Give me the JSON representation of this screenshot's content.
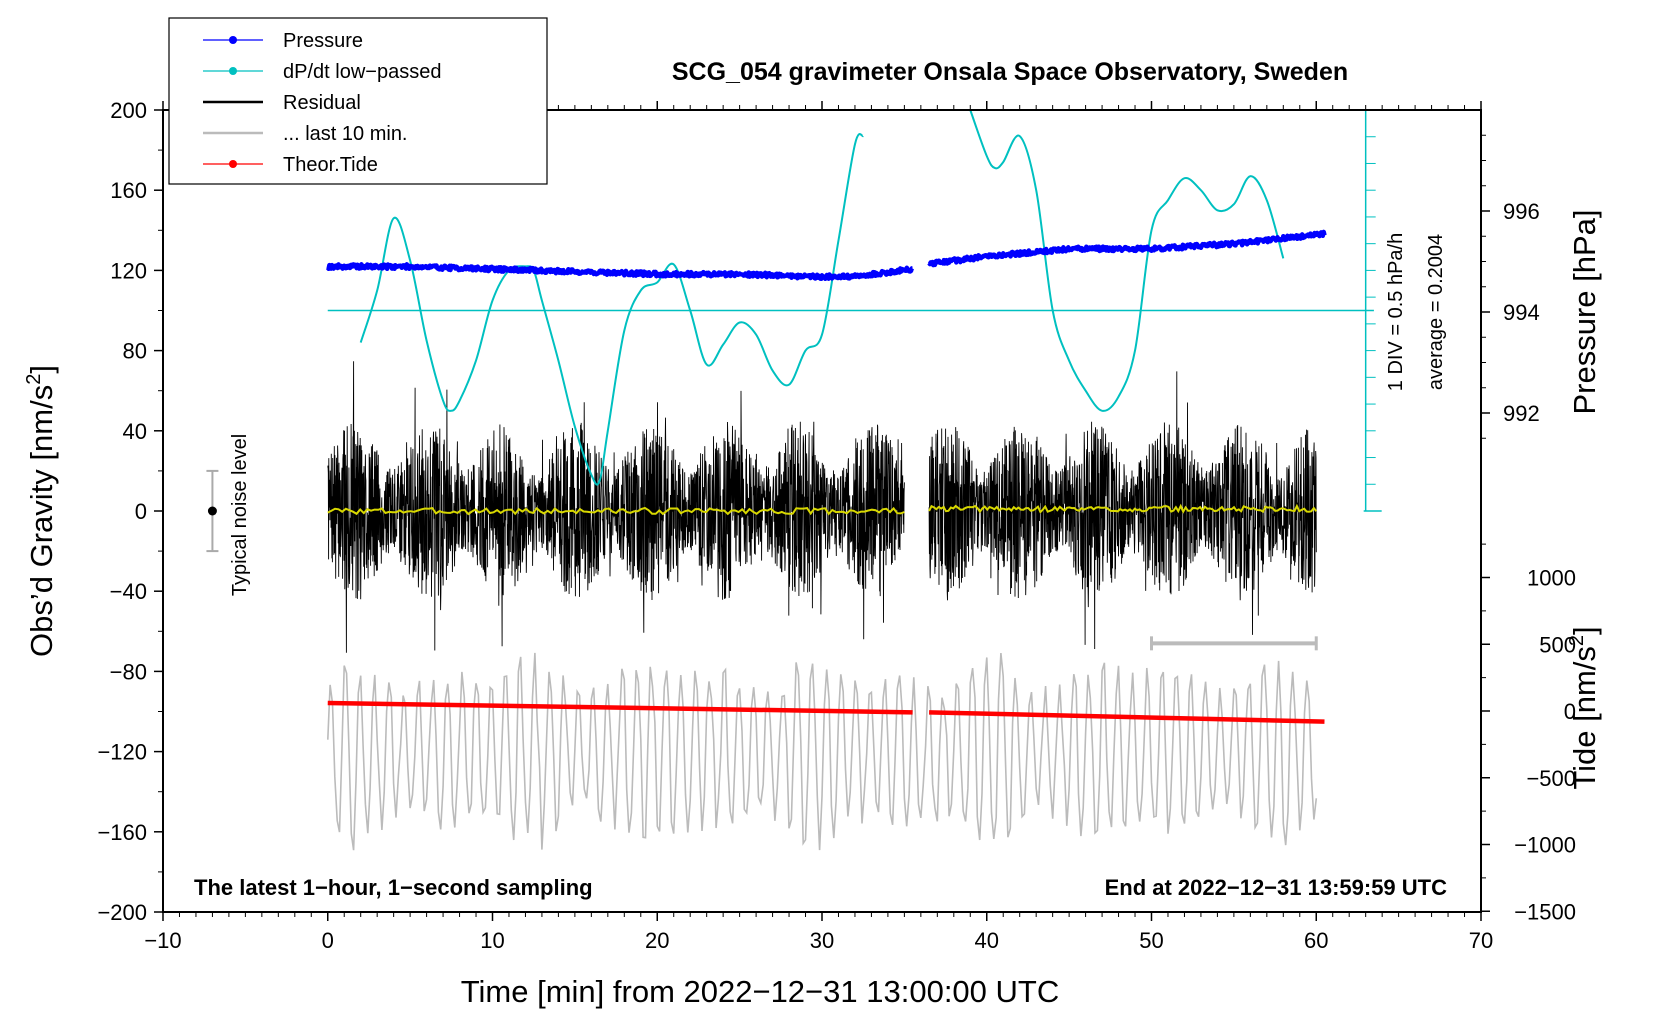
{
  "chart_data": {
    "type": "line",
    "title": "SCG_054 gravimeter Onsala Space Observatory, Sweden",
    "xlabel": "Time [min] from 2022−12−31 13:00:00 UTC",
    "ylabel_left": "Obs’d Gravity [nm/s²]",
    "ylabel_pressure": "Pressure [hPa]",
    "ylabel_tide": "Tide [nm/s²]",
    "xlim": [
      -10,
      70
    ],
    "ylim_left": [
      -200,
      200
    ],
    "x_ticks": [
      -10,
      0,
      10,
      20,
      30,
      40,
      50,
      60,
      70
    ],
    "x_tick_labels": [
      "−10",
      "0",
      "10",
      "20",
      "30",
      "40",
      "50",
      "60",
      "70"
    ],
    "y_ticks_left": [
      200,
      160,
      120,
      80,
      40,
      0,
      -40,
      -80,
      -120,
      -160,
      -200
    ],
    "y_tick_labels_left": [
      "200",
      "160",
      "120",
      "80",
      "40",
      "0",
      "−40",
      "−80",
      "−120",
      "−160",
      "−200"
    ],
    "pressure_ticks": [
      996,
      994,
      992
    ],
    "pressure_tick_labels": [
      "996",
      "994",
      "992"
    ],
    "tide_ticks": [
      1000,
      500,
      0,
      -500,
      -1000,
      -1500
    ],
    "tide_tick_labels": [
      "1000",
      "500",
      "0",
      "−500",
      "−1000",
      "−1500"
    ],
    "legend": {
      "position": "top-left",
      "entries": [
        {
          "label": "Pressure",
          "color": "#0000ff",
          "marker": true
        },
        {
          "label": "dP/dt low−passed",
          "color": "#00c0c0",
          "marker": true
        },
        {
          "label": "Residual",
          "color": "#000000",
          "marker": false
        },
        {
          "label": "... last 10 min.",
          "color": "#bbbbbb",
          "marker": false
        },
        {
          "label": "Theor.Tide",
          "color": "#ff0000",
          "marker": true
        }
      ]
    },
    "series": [
      {
        "name": "Pressure",
        "axis": "pressure",
        "color": "#0000ff",
        "segments": [
          {
            "x": [
              0,
              5,
              10,
              15,
              20,
              25,
              30,
              32,
              35.5
            ],
            "y": [
              994.9,
              994.9,
              994.85,
              994.8,
              994.75,
              994.75,
              994.7,
              994.7,
              994.85
            ]
          },
          {
            "x": [
              36.5,
              40,
              45,
              50,
              55,
              60.5
            ],
            "y": [
              994.95,
              995.1,
              995.25,
              995.25,
              995.35,
              995.55
            ]
          }
        ]
      },
      {
        "name": "dP/dt low-passed",
        "axis": "left",
        "color": "#00c0c0",
        "baseline": 100,
        "segments": [
          {
            "x": [
              2,
              3,
              4,
              5,
              6,
              7,
              7.5,
              8,
              9,
              10,
              11,
              12,
              12.5,
              13,
              14,
              15,
              16,
              16.5,
              17,
              18,
              19,
              20,
              21,
              22,
              23,
              24,
              25,
              26,
              27,
              28,
              29,
              30,
              31,
              32,
              32.5
            ],
            "y": [
              84,
              110,
              146,
              125,
              85,
              55,
              50,
              55,
              75,
              105,
              120,
              122,
              120,
              105,
              75,
              42,
              18,
              15,
              40,
              90,
              110,
              114,
              123,
              100,
              73,
              83,
              94,
              88,
              70,
              63,
              80,
              88,
              135,
              183,
              187
            ]
          },
          {
            "x": [
              39,
              40,
              40.5,
              41,
              42,
              43,
              44,
              45,
              46,
              47,
              48,
              49,
              50,
              51,
              52,
              53,
              54,
              55,
              56,
              57,
              58
            ],
            "y": [
              200,
              177,
              171,
              174,
              187,
              160,
              100,
              75,
              60,
              50,
              57,
              80,
              140,
              155,
              166,
              160,
              150,
              153,
              167,
              155,
              126
            ]
          }
        ]
      },
      {
        "name": "Residual",
        "axis": "left",
        "color": "#000000",
        "segments": [
          {
            "x_range": [
              0,
              35
            ]
          },
          {
            "x_range": [
              36.5,
              60
            ]
          }
        ],
        "approx_envelope": [
          -75,
          80
        ]
      },
      {
        "name": "Residual smoothed",
        "axis": "left",
        "color": "#d8d800",
        "segments": [
          {
            "x": [
              0,
              35
            ],
            "y": [
              0,
              0
            ]
          },
          {
            "x": [
              36.5,
              60
            ],
            "y": [
              1,
              1
            ]
          }
        ]
      },
      {
        "name": "... last 10 min.",
        "axis": "left",
        "color": "#bbbbbb",
        "x_range": [
          0,
          60
        ],
        "baseline": -120,
        "approx_envelope": [
          -165,
          -70
        ]
      },
      {
        "name": "Theor.Tide",
        "axis": "tide",
        "color": "#ff0000",
        "segments": [
          {
            "x": [
              0,
              35.5
            ],
            "y": [
              60,
              -10
            ]
          },
          {
            "x": [
              36.5,
              60.5
            ],
            "y": [
              -10,
              -80
            ]
          }
        ]
      }
    ],
    "pressure_scale_bar": {
      "label": "1 DIV = 0.5 hPa/h",
      "average_label": "average = 0.2004",
      "x": 63,
      "y_range": [
        0,
        200
      ]
    },
    "noise_level": {
      "label": "Typical noise level",
      "x": -7,
      "y": 0,
      "y_range": [
        -20,
        20
      ]
    },
    "window_bar": {
      "x_range": [
        50,
        60
      ],
      "y": -66
    },
    "annotations": {
      "bottom_left": "The latest 1−hour, 1−second sampling",
      "bottom_right": "End at 2022−12−31 13:59:59 UTC"
    }
  }
}
